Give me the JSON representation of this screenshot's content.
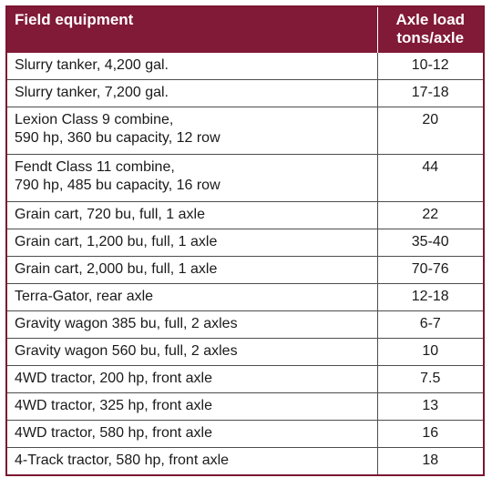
{
  "header": {
    "equipment": "Field equipment",
    "axle_load_line1": "Axle load",
    "axle_load_line2": "tons/axle"
  },
  "rows": [
    {
      "equipment": [
        "Slurry tanker, 4,200 gal."
      ],
      "load": "10-12"
    },
    {
      "equipment": [
        "Slurry tanker, 7,200 gal."
      ],
      "load": "17-18"
    },
    {
      "equipment": [
        "Lexion Class 9 combine,",
        "590 hp, 360 bu capacity, 12 row"
      ],
      "load": "20"
    },
    {
      "equipment": [
        "Fendt Class 11 combine,",
        "790 hp, 485 bu capacity, 16 row"
      ],
      "load": "44"
    },
    {
      "equipment": [
        "Grain cart, 720 bu, full, 1 axle"
      ],
      "load": "22"
    },
    {
      "equipment": [
        "Grain cart, 1,200 bu, full, 1 axle"
      ],
      "load": "35-40"
    },
    {
      "equipment": [
        "Grain cart, 2,000 bu, full, 1 axle"
      ],
      "load": "70-76"
    },
    {
      "equipment": [
        "Terra-Gator, rear axle"
      ],
      "load": "12-18"
    },
    {
      "equipment": [
        "Gravity wagon 385 bu, full, 2 axles"
      ],
      "load": "6-7"
    },
    {
      "equipment": [
        "Gravity wagon 560 bu, full, 2 axles"
      ],
      "load": "10"
    },
    {
      "equipment": [
        "4WD tractor, 200 hp, front axle"
      ],
      "load": "7.5"
    },
    {
      "equipment": [
        "4WD tractor, 325 hp, front axle"
      ],
      "load": "13"
    },
    {
      "equipment": [
        "4WD tractor, 580 hp, front axle"
      ],
      "load": "16"
    },
    {
      "equipment": [
        "4-Track tractor, 580 hp, front axle"
      ],
      "load": "18"
    }
  ],
  "colors": {
    "header_bg": "#801a37",
    "header_text": "#ffffff",
    "border": "#4d4d4d"
  }
}
